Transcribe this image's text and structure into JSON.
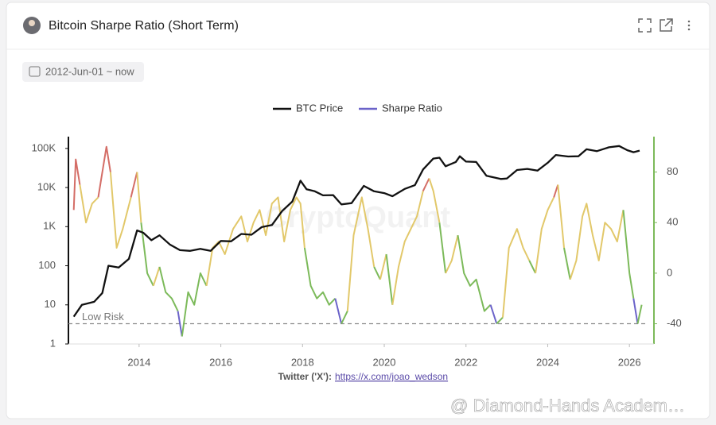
{
  "header": {
    "title": "Bitcoin Sharpe Ratio (Short Term)"
  },
  "filter": {
    "date_range": "2012-Jun-01 ~ now"
  },
  "footer": {
    "label": "Twitter ('X'):",
    "link": "https://x.com/joao_wedson"
  },
  "overlay_watermark": "@ Diamond-Hands Academ…",
  "chart_data": {
    "type": "line",
    "watermark": "CryptoQuant",
    "xlim": [
      2012.27,
      2026.6
    ],
    "xticks": [
      2014,
      2016,
      2018,
      2020,
      2022,
      2024,
      2026
    ],
    "yscale": "log",
    "ylim": [
      1,
      200000
    ],
    "yticks": [
      {
        "value": 1,
        "label": "1"
      },
      {
        "value": 10,
        "label": "10"
      },
      {
        "value": 100,
        "label": "100"
      },
      {
        "value": 1000,
        "label": "1K"
      },
      {
        "value": 10000,
        "label": "10K"
      },
      {
        "value": 100000,
        "label": "100K"
      }
    ],
    "y2lim": [
      -56,
      108
    ],
    "y2ticks": [
      -40,
      0,
      40,
      80
    ],
    "reference_line": {
      "value": -40,
      "label": "Low Risk",
      "axis": "y2"
    },
    "series": [
      {
        "name": "BTC Price",
        "color": "#111111",
        "x": [
          2012.4,
          2012.6,
          2012.9,
          2013.1,
          2013.25,
          2013.5,
          2013.75,
          2013.95,
          2014.1,
          2014.3,
          2014.5,
          2014.75,
          2015.0,
          2015.25,
          2015.5,
          2015.75,
          2016.0,
          2016.25,
          2016.5,
          2016.75,
          2017.0,
          2017.25,
          2017.5,
          2017.75,
          2017.95,
          2018.1,
          2018.3,
          2018.5,
          2018.75,
          2018.95,
          2019.2,
          2019.5,
          2019.75,
          2020.0,
          2020.2,
          2020.5,
          2020.75,
          2020.95,
          2021.2,
          2021.35,
          2021.5,
          2021.75,
          2021.85,
          2022.0,
          2022.25,
          2022.5,
          2022.85,
          2023.0,
          2023.25,
          2023.5,
          2023.75,
          2024.0,
          2024.2,
          2024.5,
          2024.75,
          2024.95,
          2025.2,
          2025.5,
          2025.75,
          2025.95,
          2026.1,
          2026.25
        ],
        "values": [
          5,
          10,
          12,
          20,
          100,
          90,
          150,
          800,
          700,
          450,
          600,
          350,
          250,
          240,
          270,
          240,
          430,
          420,
          650,
          620,
          970,
          1100,
          2500,
          4400,
          15000,
          9000,
          8000,
          6300,
          6400,
          3700,
          4000,
          11000,
          8000,
          7200,
          6000,
          9200,
          11500,
          29000,
          55000,
          58000,
          35000,
          45000,
          63000,
          46000,
          45000,
          20000,
          16500,
          17000,
          28000,
          30000,
          27000,
          43000,
          68000,
          62000,
          63000,
          95000,
          85000,
          107000,
          115000,
          90000,
          80000,
          88000
        ]
      },
      {
        "name": "Sharpe Ratio",
        "color": "#6b63c9",
        "axis": "y2",
        "color_zones": [
          {
            "max": -40,
            "color": "#6b63c9"
          },
          {
            "max": 0,
            "color": "#7cba5a"
          },
          {
            "max": 65,
            "color": "#e2c86a"
          },
          {
            "color": "#d46d66"
          }
        ],
        "x": [
          2012.4,
          2012.45,
          2012.55,
          2012.7,
          2012.85,
          2013.0,
          2013.2,
          2013.3,
          2013.45,
          2013.6,
          2013.8,
          2013.95,
          2014.05,
          2014.2,
          2014.35,
          2014.5,
          2014.65,
          2014.8,
          2014.95,
          2015.05,
          2015.2,
          2015.35,
          2015.5,
          2015.65,
          2015.8,
          2015.95,
          2016.1,
          2016.3,
          2016.5,
          2016.65,
          2016.8,
          2016.95,
          2017.1,
          2017.25,
          2017.4,
          2017.55,
          2017.7,
          2017.85,
          2017.95,
          2018.05,
          2018.2,
          2018.35,
          2018.5,
          2018.65,
          2018.8,
          2018.95,
          2019.1,
          2019.25,
          2019.45,
          2019.6,
          2019.75,
          2019.9,
          2020.05,
          2020.2,
          2020.35,
          2020.5,
          2020.65,
          2020.8,
          2020.95,
          2021.1,
          2021.2,
          2021.35,
          2021.5,
          2021.65,
          2021.8,
          2021.95,
          2022.1,
          2022.25,
          2022.45,
          2022.6,
          2022.75,
          2022.9,
          2023.05,
          2023.25,
          2023.4,
          2023.55,
          2023.7,
          2023.85,
          2024.0,
          2024.15,
          2024.25,
          2024.4,
          2024.55,
          2024.7,
          2024.85,
          2024.95,
          2025.1,
          2025.25,
          2025.4,
          2025.55,
          2025.7,
          2025.85,
          2026.0,
          2026.1,
          2026.2,
          2026.3
        ],
        "values": [
          50,
          90,
          70,
          40,
          55,
          60,
          100,
          80,
          20,
          35,
          60,
          80,
          40,
          0,
          -10,
          5,
          -15,
          -20,
          -30,
          -50,
          -15,
          -25,
          0,
          -10,
          20,
          25,
          15,
          35,
          45,
          25,
          40,
          50,
          30,
          55,
          60,
          25,
          50,
          60,
          55,
          20,
          -10,
          -20,
          -15,
          -25,
          -20,
          -40,
          -30,
          30,
          60,
          35,
          5,
          -5,
          15,
          -25,
          5,
          25,
          35,
          45,
          65,
          75,
          65,
          40,
          0,
          10,
          30,
          0,
          -10,
          -5,
          -30,
          -25,
          -40,
          -35,
          20,
          35,
          20,
          10,
          0,
          35,
          50,
          60,
          70,
          20,
          -5,
          10,
          45,
          55,
          30,
          10,
          40,
          35,
          25,
          50,
          0,
          -20,
          -40,
          -25
        ]
      }
    ]
  }
}
